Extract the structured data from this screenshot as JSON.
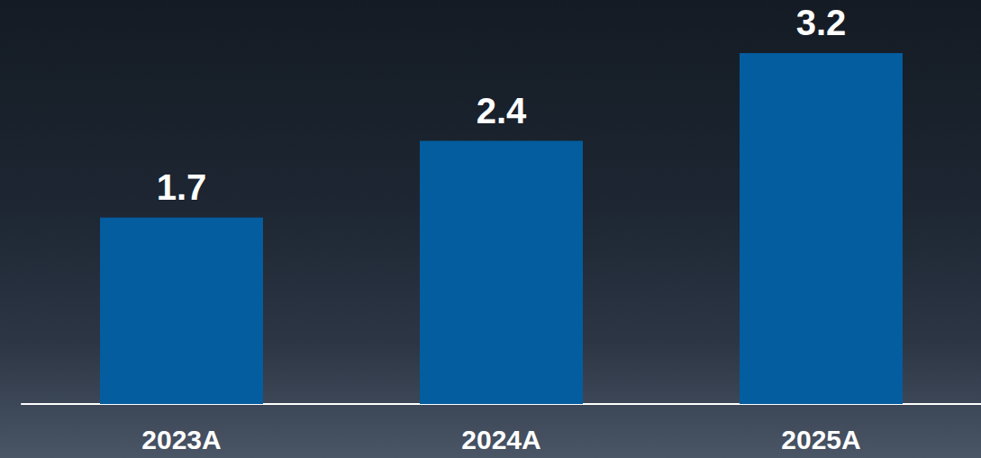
{
  "chart_data": {
    "type": "bar",
    "categories": [
      "2023A",
      "2024A",
      "2025A"
    ],
    "values": [
      1.7,
      2.4,
      3.2
    ],
    "color": "#035d9f",
    "ylim": [
      0,
      3.2
    ],
    "grid": false,
    "data_labels": true,
    "tick_labels": "x"
  }
}
